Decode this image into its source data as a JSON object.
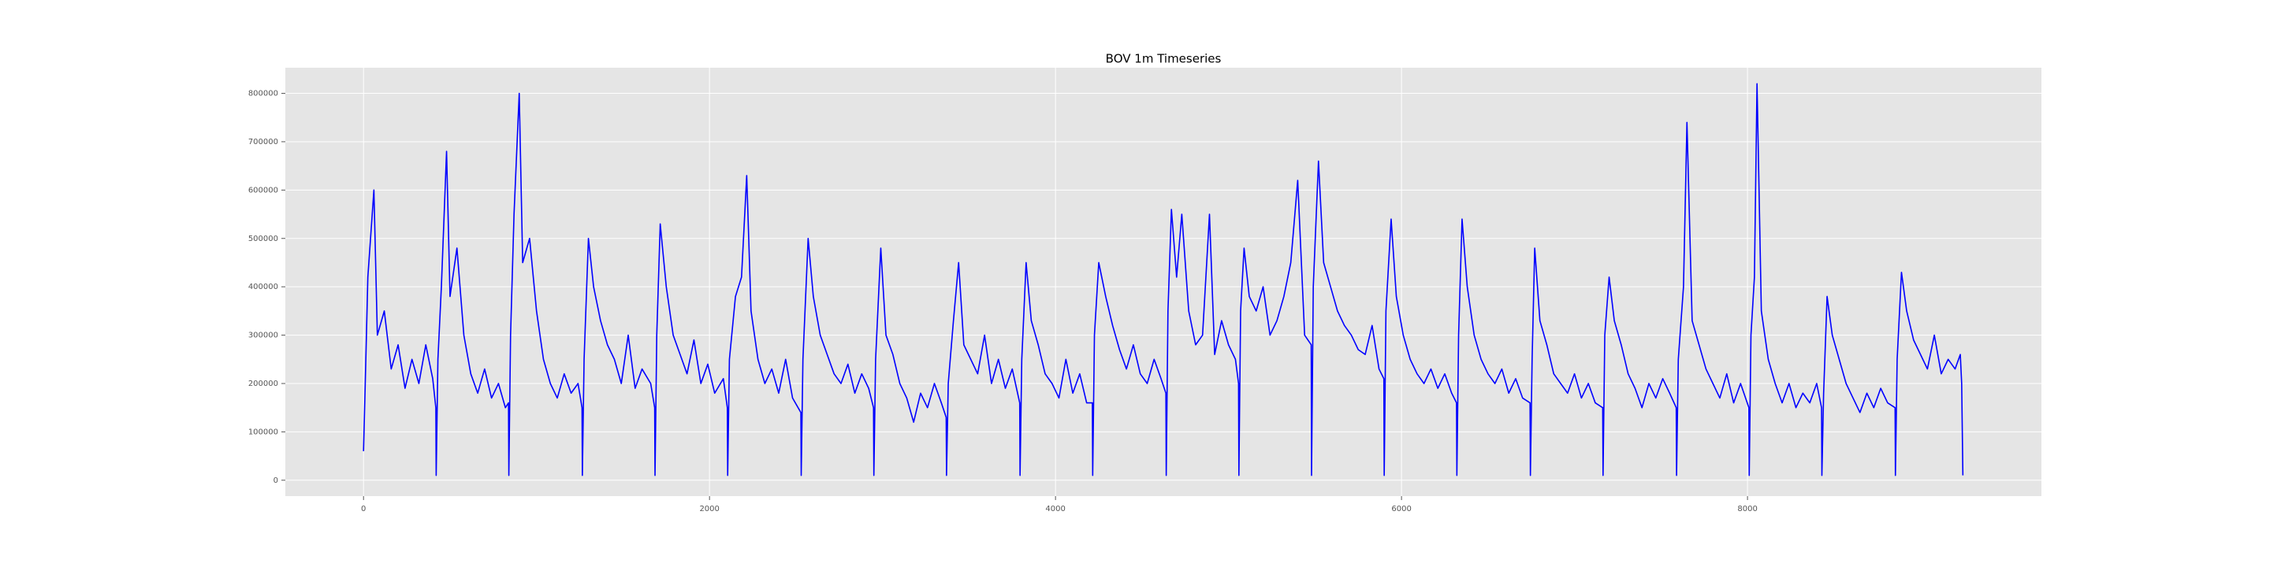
{
  "chart_data": {
    "type": "line",
    "title": "BOV 1m Timeseries",
    "x": [
      0,
      10,
      25,
      60,
      80,
      120,
      160,
      200,
      240,
      280,
      320,
      360,
      400,
      418,
      420,
      430,
      450,
      480,
      500,
      540,
      580,
      620,
      660,
      700,
      740,
      780,
      820,
      838,
      840,
      850,
      870,
      900,
      920,
      960,
      1000,
      1040,
      1080,
      1120,
      1160,
      1200,
      1240,
      1263,
      1265,
      1275,
      1300,
      1330,
      1370,
      1410,
      1450,
      1490,
      1530,
      1570,
      1610,
      1660,
      1683,
      1685,
      1695,
      1715,
      1750,
      1790,
      1830,
      1870,
      1910,
      1950,
      1990,
      2030,
      2080,
      2103,
      2105,
      2115,
      2150,
      2185,
      2215,
      2240,
      2280,
      2320,
      2360,
      2400,
      2440,
      2480,
      2528,
      2530,
      2540,
      2570,
      2600,
      2640,
      2680,
      2720,
      2760,
      2800,
      2840,
      2880,
      2920,
      2948,
      2950,
      2960,
      2990,
      3020,
      3060,
      3100,
      3140,
      3180,
      3220,
      3260,
      3300,
      3340,
      3368,
      3370,
      3380,
      3410,
      3440,
      3470,
      3510,
      3550,
      3590,
      3630,
      3670,
      3710,
      3750,
      3793,
      3795,
      3805,
      3830,
      3860,
      3900,
      3940,
      3980,
      4020,
      4060,
      4100,
      4140,
      4180,
      4213,
      4215,
      4225,
      4250,
      4290,
      4330,
      4370,
      4410,
      4450,
      4490,
      4530,
      4570,
      4610,
      4638,
      4640,
      4650,
      4670,
      4700,
      4730,
      4770,
      4810,
      4850,
      4890,
      4920,
      4960,
      5000,
      5040,
      5058,
      5060,
      5070,
      5090,
      5120,
      5160,
      5200,
      5240,
      5280,
      5320,
      5360,
      5400,
      5440,
      5478,
      5480,
      5490,
      5520,
      5550,
      5590,
      5630,
      5670,
      5710,
      5750,
      5790,
      5830,
      5870,
      5898,
      5900,
      5910,
      5940,
      5970,
      6010,
      6050,
      6090,
      6130,
      6170,
      6210,
      6250,
      6290,
      6318,
      6320,
      6330,
      6350,
      6380,
      6420,
      6460,
      6500,
      6540,
      6580,
      6620,
      6660,
      6700,
      6743,
      6745,
      6755,
      6770,
      6800,
      6840,
      6880,
      6920,
      6960,
      7000,
      7040,
      7080,
      7120,
      7163,
      7165,
      7175,
      7200,
      7230,
      7270,
      7310,
      7350,
      7390,
      7430,
      7470,
      7510,
      7550,
      7588,
      7590,
      7600,
      7630,
      7650,
      7680,
      7720,
      7760,
      7800,
      7840,
      7880,
      7920,
      7960,
      8008,
      8010,
      8020,
      8040,
      8055,
      8080,
      8120,
      8160,
      8200,
      8240,
      8280,
      8320,
      8360,
      8400,
      8428,
      8430,
      8440,
      8460,
      8490,
      8530,
      8570,
      8610,
      8650,
      8690,
      8730,
      8770,
      8810,
      8853,
      8855,
      8865,
      8890,
      8920,
      8960,
      9000,
      9040,
      9080,
      9120,
      9160,
      9200,
      9230,
      9238,
      9245
    ],
    "values": [
      60000,
      200000,
      420000,
      600000,
      300000,
      350000,
      230000,
      280000,
      190000,
      250000,
      200000,
      280000,
      210000,
      150000,
      10000,
      250000,
      400000,
      680000,
      380000,
      480000,
      300000,
      220000,
      180000,
      230000,
      170000,
      200000,
      150000,
      160000,
      10000,
      300000,
      550000,
      800000,
      450000,
      500000,
      350000,
      250000,
      200000,
      170000,
      220000,
      180000,
      200000,
      150000,
      10000,
      250000,
      500000,
      400000,
      330000,
      280000,
      250000,
      200000,
      300000,
      190000,
      230000,
      200000,
      150000,
      10000,
      300000,
      530000,
      400000,
      300000,
      260000,
      220000,
      290000,
      200000,
      240000,
      180000,
      210000,
      150000,
      10000,
      250000,
      380000,
      420000,
      630000,
      350000,
      250000,
      200000,
      230000,
      180000,
      250000,
      170000,
      140000,
      10000,
      250000,
      500000,
      380000,
      300000,
      260000,
      220000,
      200000,
      240000,
      180000,
      220000,
      190000,
      150000,
      10000,
      250000,
      480000,
      300000,
      260000,
      200000,
      170000,
      120000,
      180000,
      150000,
      200000,
      160000,
      130000,
      10000,
      200000,
      330000,
      450000,
      280000,
      250000,
      220000,
      300000,
      200000,
      250000,
      190000,
      230000,
      160000,
      10000,
      250000,
      450000,
      330000,
      280000,
      220000,
      200000,
      170000,
      250000,
      180000,
      220000,
      160000,
      160000,
      10000,
      300000,
      450000,
      380000,
      320000,
      270000,
      230000,
      280000,
      220000,
      200000,
      250000,
      210000,
      180000,
      10000,
      350000,
      560000,
      420000,
      550000,
      350000,
      280000,
      300000,
      550000,
      260000,
      330000,
      280000,
      250000,
      200000,
      10000,
      350000,
      480000,
      380000,
      350000,
      400000,
      300000,
      330000,
      380000,
      450000,
      620000,
      300000,
      280000,
      10000,
      400000,
      660000,
      450000,
      400000,
      350000,
      320000,
      300000,
      270000,
      260000,
      320000,
      230000,
      210000,
      10000,
      350000,
      540000,
      380000,
      300000,
      250000,
      220000,
      200000,
      230000,
      190000,
      220000,
      180000,
      160000,
      10000,
      300000,
      540000,
      400000,
      300000,
      250000,
      220000,
      200000,
      230000,
      180000,
      210000,
      170000,
      160000,
      10000,
      250000,
      480000,
      330000,
      280000,
      220000,
      200000,
      180000,
      220000,
      170000,
      200000,
      160000,
      150000,
      10000,
      300000,
      420000,
      330000,
      280000,
      220000,
      190000,
      150000,
      200000,
      170000,
      210000,
      180000,
      150000,
      10000,
      250000,
      400000,
      740000,
      330000,
      280000,
      230000,
      200000,
      170000,
      220000,
      160000,
      200000,
      150000,
      10000,
      300000,
      420000,
      820000,
      350000,
      250000,
      200000,
      160000,
      200000,
      150000,
      180000,
      160000,
      200000,
      150000,
      10000,
      180000,
      380000,
      300000,
      250000,
      200000,
      170000,
      140000,
      180000,
      150000,
      190000,
      160000,
      150000,
      10000,
      250000,
      430000,
      350000,
      290000,
      260000,
      230000,
      300000,
      220000,
      250000,
      230000,
      260000,
      200000,
      10000
    ],
    "color": "#0000ff",
    "xlim": [
      -452,
      9699
    ],
    "ylim": [
      -32900,
      853000
    ],
    "xticks": [
      0,
      2000,
      4000,
      6000,
      8000
    ],
    "yticks": [
      0,
      100000,
      200000,
      300000,
      400000,
      500000,
      600000,
      700000,
      800000
    ],
    "grid": true
  }
}
